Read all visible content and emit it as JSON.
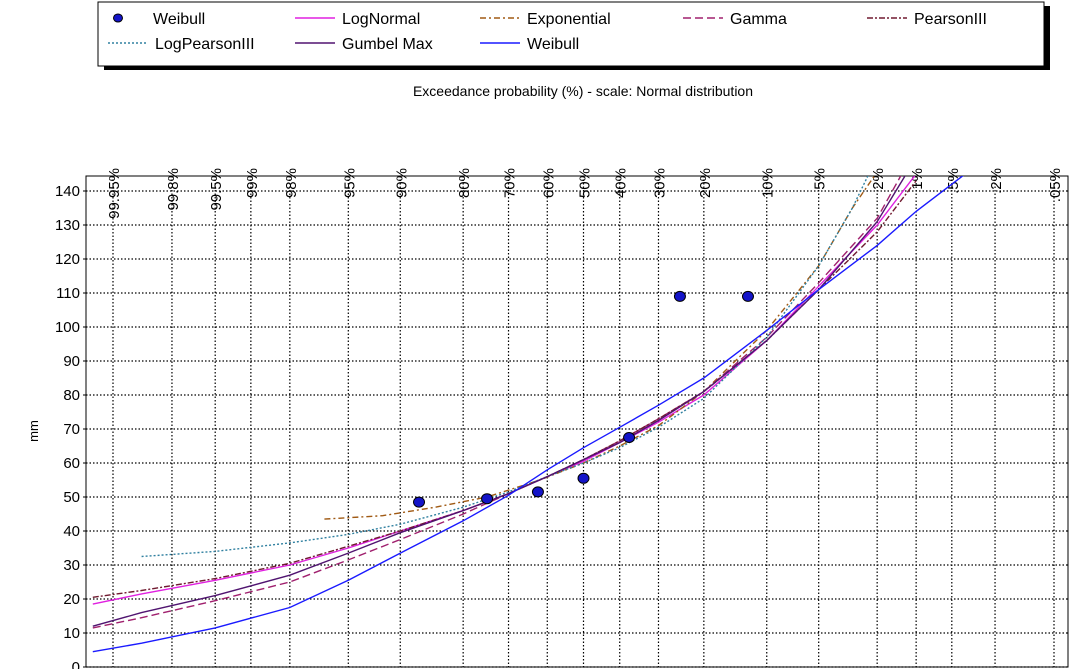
{
  "chart_data": {
    "type": "line",
    "title": "",
    "xlabel": "Exceedance probability  (%) - scale: Normal distribution",
    "ylabel": "mm",
    "x_scale": "normal-probability",
    "x_ticks": [
      {
        "p": 99.95,
        "label": "99.95%"
      },
      {
        "p": 99.8,
        "label": "99.8%"
      },
      {
        "p": 99.5,
        "label": "99.5%"
      },
      {
        "p": 99,
        "label": "99%"
      },
      {
        "p": 98,
        "label": "98%"
      },
      {
        "p": 95,
        "label": "95%"
      },
      {
        "p": 90,
        "label": "90%"
      },
      {
        "p": 80,
        "label": "80%"
      },
      {
        "p": 70,
        "label": "70%"
      },
      {
        "p": 60,
        "label": "60%"
      },
      {
        "p": 50,
        "label": "50%"
      },
      {
        "p": 40,
        "label": "40%"
      },
      {
        "p": 30,
        "label": "30%"
      },
      {
        "p": 20,
        "label": "20%"
      },
      {
        "p": 10,
        "label": "10%"
      },
      {
        "p": 5,
        "label": "5%"
      },
      {
        "p": 2,
        "label": "2%"
      },
      {
        "p": 1,
        "label": "1%"
      },
      {
        "p": 0.5,
        "label": ".5%"
      },
      {
        "p": 0.2,
        "label": ".2%"
      },
      {
        "p": 0.05,
        "label": ".05%"
      }
    ],
    "y_ticks": [
      0,
      10,
      20,
      30,
      40,
      50,
      60,
      70,
      80,
      90,
      100,
      110,
      120,
      130,
      140
    ],
    "ylim": [
      0,
      145
    ],
    "grid": true,
    "legend_position": "top",
    "points": {
      "name": "Weibull",
      "color": "#1414c8",
      "data": [
        {
          "p": 87.5,
          "y": 48.5
        },
        {
          "p": 75,
          "y": 49.5
        },
        {
          "p": 62.5,
          "y": 51.5
        },
        {
          "p": 50,
          "y": 55.5
        },
        {
          "p": 37.5,
          "y": 67.5
        },
        {
          "p": 25,
          "y": 109
        },
        {
          "p": 12.5,
          "y": 109
        }
      ]
    },
    "series": [
      {
        "name": "LogNormal",
        "color": "#e020e0",
        "dash": "solid",
        "data": [
          [
            99.97,
            18.5
          ],
          [
            99.9,
            21.5
          ],
          [
            99.5,
            25.5
          ],
          [
            98,
            30
          ],
          [
            95,
            35
          ],
          [
            90,
            40
          ],
          [
            80,
            46
          ],
          [
            70,
            51
          ],
          [
            60,
            56
          ],
          [
            50,
            60.5
          ],
          [
            40,
            66
          ],
          [
            30,
            72
          ],
          [
            20,
            80
          ],
          [
            10,
            96
          ],
          [
            5,
            112
          ],
          [
            2,
            130
          ],
          [
            1,
            145
          ]
        ]
      },
      {
        "name": "Exponential",
        "color": "#a05a14",
        "dash": "6 3 2 3",
        "data": [
          [
            96.5,
            43.5
          ],
          [
            92,
            44.5
          ],
          [
            85,
            47
          ],
          [
            75,
            50
          ],
          [
            62,
            55
          ],
          [
            50,
            60
          ],
          [
            40,
            65
          ],
          [
            30,
            71
          ],
          [
            20,
            81
          ],
          [
            10,
            99
          ],
          [
            5,
            118
          ],
          [
            3,
            135
          ],
          [
            2.05,
            145
          ]
        ]
      },
      {
        "name": "Gamma",
        "color": "#a0206e",
        "dash": "8 4",
        "data": [
          [
            99.97,
            11.5
          ],
          [
            99.9,
            14.5
          ],
          [
            99.5,
            19.5
          ],
          [
            98,
            25
          ],
          [
            95,
            31.5
          ],
          [
            90,
            37.5
          ],
          [
            80,
            45
          ],
          [
            70,
            51
          ],
          [
            60,
            56
          ],
          [
            50,
            61
          ],
          [
            40,
            66.5
          ],
          [
            30,
            73
          ],
          [
            20,
            81
          ],
          [
            10,
            97
          ],
          [
            5,
            113
          ],
          [
            2,
            132
          ],
          [
            1.3,
            145
          ]
        ]
      },
      {
        "name": "PearsonIII",
        "color": "#701a30",
        "dash": "6 2 2 2",
        "data": [
          [
            99.97,
            20.5
          ],
          [
            99.9,
            22.5
          ],
          [
            99.5,
            26
          ],
          [
            98,
            30.5
          ],
          [
            95,
            35.5
          ],
          [
            90,
            40
          ],
          [
            80,
            46
          ],
          [
            70,
            51
          ],
          [
            60,
            56
          ],
          [
            50,
            61
          ],
          [
            40,
            66.5
          ],
          [
            30,
            73
          ],
          [
            20,
            81
          ],
          [
            10,
            96
          ],
          [
            5,
            111
          ],
          [
            2,
            128
          ],
          [
            1,
            143
          ]
        ]
      },
      {
        "name": "LogPearsonIII",
        "color": "#3080a0",
        "dash": "2 2",
        "data": [
          [
            99.9,
            32.5
          ],
          [
            99.5,
            34
          ],
          [
            98,
            36.5
          ],
          [
            95,
            39
          ],
          [
            90,
            42
          ],
          [
            80,
            47
          ],
          [
            70,
            51.5
          ],
          [
            60,
            56
          ],
          [
            50,
            60
          ],
          [
            40,
            64.5
          ],
          [
            30,
            70.5
          ],
          [
            20,
            79
          ],
          [
            10,
            97
          ],
          [
            5,
            118
          ],
          [
            3,
            135
          ],
          [
            2.3,
            145
          ]
        ]
      },
      {
        "name": "Gumbel Max",
        "color": "#501470",
        "dash": "solid",
        "data": [
          [
            99.97,
            12
          ],
          [
            99.9,
            16
          ],
          [
            99.5,
            21
          ],
          [
            98,
            27
          ],
          [
            95,
            33.5
          ],
          [
            90,
            39.5
          ],
          [
            80,
            46
          ],
          [
            70,
            51
          ],
          [
            60,
            56
          ],
          [
            50,
            61
          ],
          [
            40,
            66
          ],
          [
            30,
            72.5
          ],
          [
            20,
            81
          ],
          [
            10,
            96
          ],
          [
            5,
            111
          ],
          [
            2,
            131
          ],
          [
            1.2,
            145
          ]
        ]
      },
      {
        "name": "Weibull",
        "color": "#1a1aff",
        "dash": "solid",
        "data": [
          [
            99.97,
            4.5
          ],
          [
            99.9,
            7
          ],
          [
            99.5,
            11.5
          ],
          [
            98,
            17.5
          ],
          [
            95,
            25.5
          ],
          [
            90,
            33.5
          ],
          [
            80,
            43
          ],
          [
            70,
            50.5
          ],
          [
            60,
            58
          ],
          [
            50,
            64.5
          ],
          [
            40,
            70.5
          ],
          [
            30,
            77
          ],
          [
            20,
            85
          ],
          [
            10,
            99
          ],
          [
            5,
            111
          ],
          [
            2,
            124
          ],
          [
            1,
            134
          ],
          [
            0.5,
            142
          ],
          [
            0.38,
            145
          ]
        ]
      }
    ]
  }
}
